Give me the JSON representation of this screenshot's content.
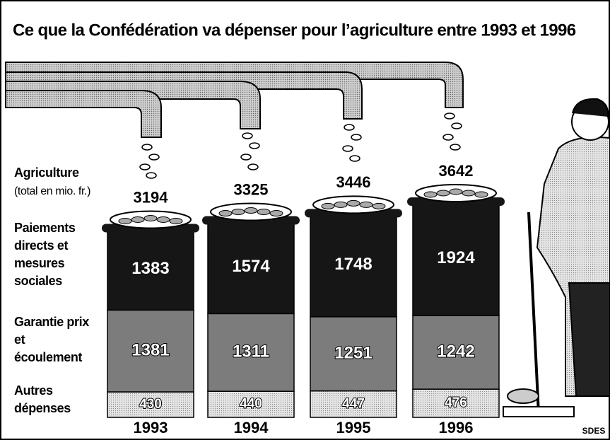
{
  "chart_data": {
    "type": "stacked-bar",
    "title": "Ce que la Confédération va dépenser pour l’agriculture entre 1993 et 1996",
    "total_label": "Agriculture",
    "total_unit": "(total en mio. fr.)",
    "categories": [
      "1993",
      "1994",
      "1995",
      "1996"
    ],
    "totals": [
      3194,
      3325,
      3446,
      3642
    ],
    "series": [
      {
        "name": "Paiements directs et mesures sociales",
        "color": "#161616",
        "values": [
          1383,
          1574,
          1748,
          1924
        ]
      },
      {
        "name": "Garantie prix et écoulement",
        "color": "#7c7c7c",
        "values": [
          1381,
          1311,
          1251,
          1242
        ]
      },
      {
        "name": "Autres dépenses",
        "color": "#d6d6d6",
        "values": [
          430,
          440,
          447,
          476
        ]
      }
    ],
    "source": "SDES"
  }
}
